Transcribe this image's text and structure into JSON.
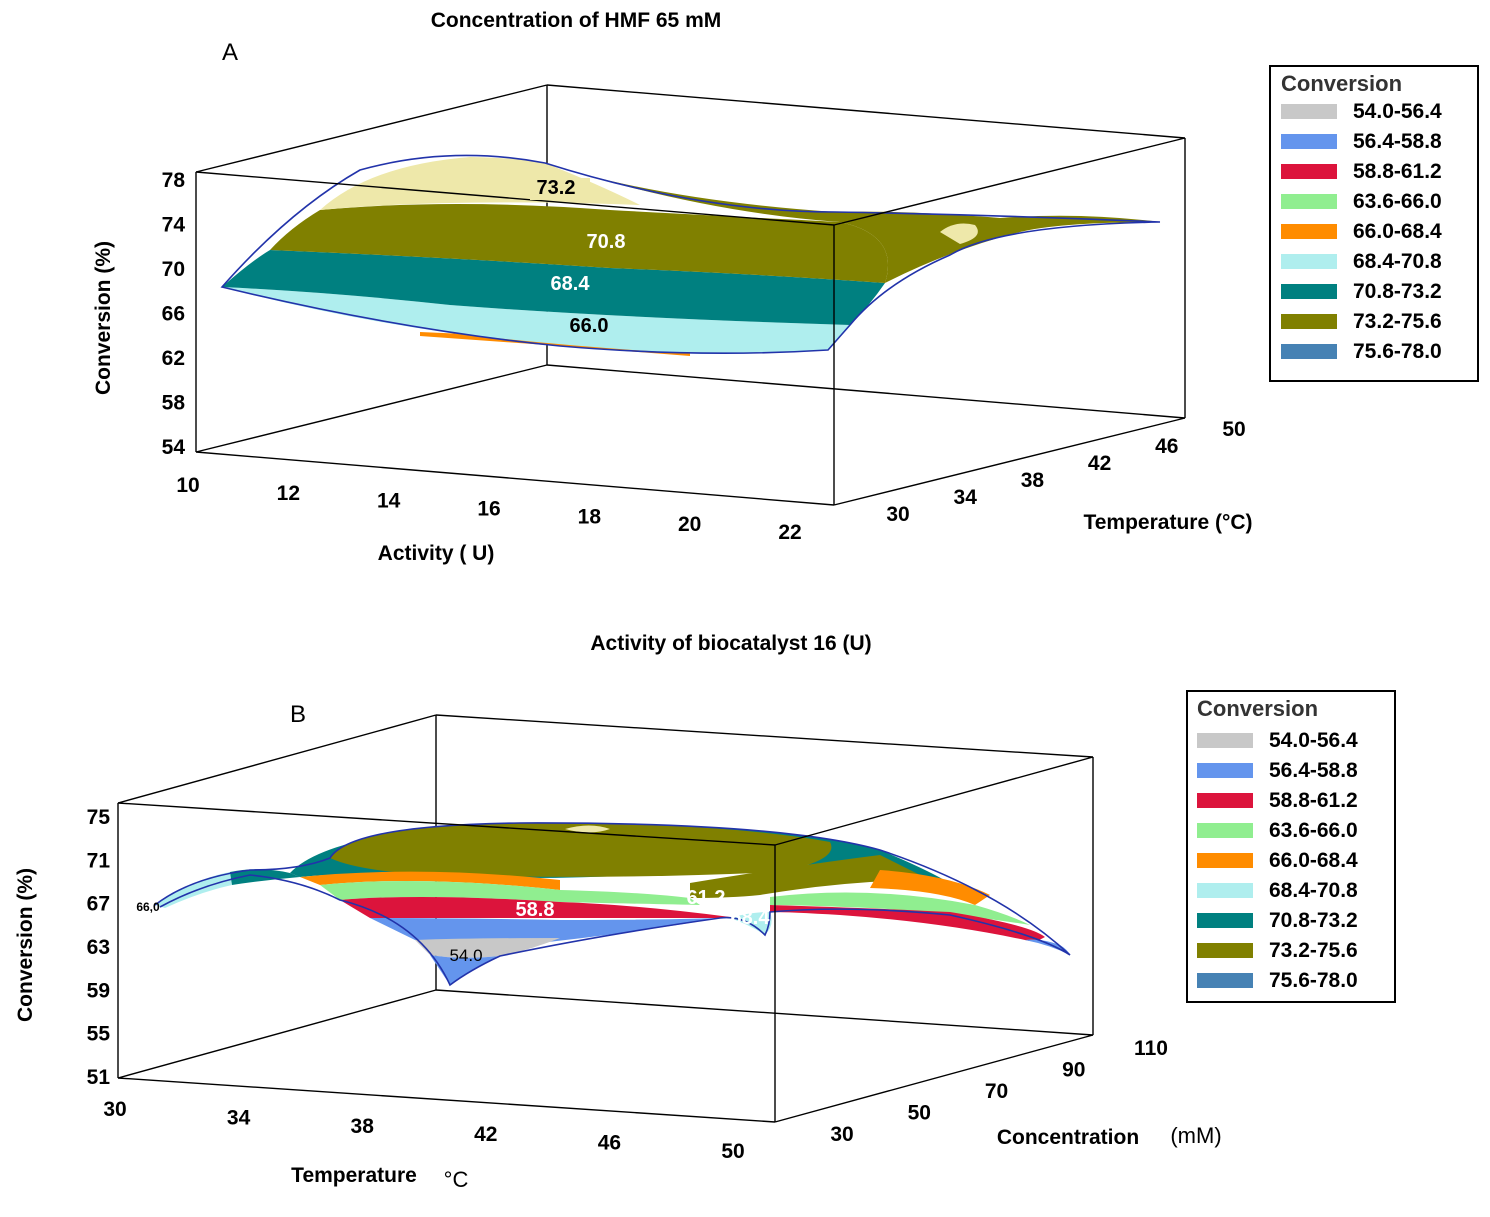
{
  "chart_data": [
    {
      "type": "surface3d",
      "panel_label": "A",
      "title": "Concentration of HMF 65 mM",
      "xlabel": "Activity ( U)",
      "ylabel": "Temperature (°C)",
      "zlabel": "Conversion (%)",
      "x_ticks": [
        "10",
        "12",
        "14",
        "16",
        "18",
        "20",
        "22"
      ],
      "y_ticks": [
        "30",
        "34",
        "38",
        "42",
        "46",
        "50"
      ],
      "z_ticks": [
        "54",
        "58",
        "62",
        "66",
        "70",
        "74",
        "78"
      ],
      "xlim": [
        10,
        22
      ],
      "ylim": [
        30,
        50
      ],
      "zlim": [
        54,
        78
      ],
      "contour_labels": [
        "73.2",
        "70.8",
        "68.4",
        "66.0"
      ],
      "legend": {
        "title": "Conversion",
        "entries": [
          {
            "label": "54.0-56.4",
            "color": "#c8c8c8"
          },
          {
            "label": "56.4-58.8",
            "color": "#6495ed"
          },
          {
            "label": "58.8-61.2",
            "color": "#dc143c"
          },
          {
            "label": "63.6-66.0",
            "color": "#90ee90"
          },
          {
            "label": "66.0-68.4",
            "color": "#ff8c00"
          },
          {
            "label": "68.4-70.8",
            "color": "#afeeee"
          },
          {
            "label": "70.8-73.2",
            "color": "#008080"
          },
          {
            "label": "73.2-75.6",
            "color": "#808000"
          },
          {
            "label": "75.6-78.0",
            "color": "#eee8aa"
          }
        ],
        "last_swatch_color": "#4682b4"
      }
    },
    {
      "type": "surface3d",
      "panel_label": "B",
      "title": "Activity of biocatalyst 16 (U)",
      "xlabel": "Temperature",
      "xlabel_unit": "°C",
      "ylabel": "Concentration",
      "ylabel_unit": "(mM)",
      "zlabel": "Conversion (%)",
      "x_ticks": [
        "30",
        "34",
        "38",
        "42",
        "46",
        "50"
      ],
      "y_ticks": [
        "30",
        "50",
        "70",
        "90",
        "110"
      ],
      "z_ticks": [
        "51",
        "55",
        "59",
        "63",
        "67",
        "71",
        "75"
      ],
      "xlim": [
        30,
        50
      ],
      "ylim": [
        30,
        110
      ],
      "zlim": [
        51,
        75
      ],
      "contour_labels": [
        "66,0",
        "58.8",
        "61.2",
        "68.4",
        "54.0"
      ],
      "legend": {
        "title": "Conversion",
        "entries": [
          {
            "label": "54.0-56.4",
            "color": "#c8c8c8"
          },
          {
            "label": "56.4-58.8",
            "color": "#6495ed"
          },
          {
            "label": "58.8-61.2",
            "color": "#dc143c"
          },
          {
            "label": "63.6-66.0",
            "color": "#90ee90"
          },
          {
            "label": "66.0-68.4",
            "color": "#ff8c00"
          },
          {
            "label": "68.4-70.8",
            "color": "#afeeee"
          },
          {
            "label": "70.8-73.2",
            "color": "#008080"
          },
          {
            "label": "73.2-75.6",
            "color": "#808000"
          },
          {
            "label": "75.6-78.0",
            "color": "#eee8aa"
          }
        ],
        "last_swatch_color": "#4682b4"
      }
    }
  ]
}
